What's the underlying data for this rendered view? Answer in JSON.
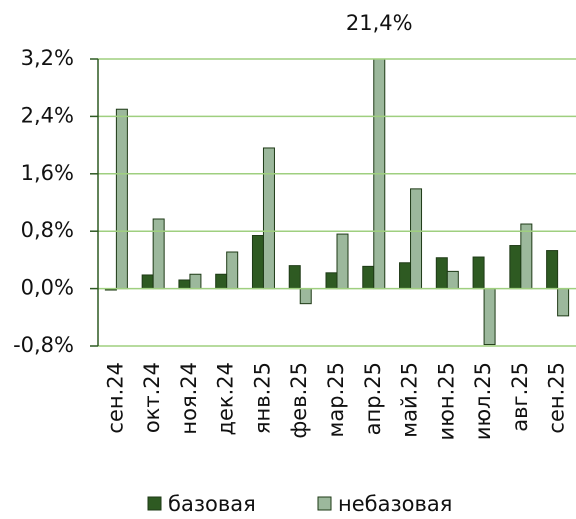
{
  "chart_data": {
    "type": "bar",
    "categories": [
      "сен.24",
      "окт.24",
      "ноя.24",
      "дек.24",
      "янв.25",
      "фев.25",
      "мар.25",
      "апр.25",
      "май.25",
      "июн.25",
      "июл.25",
      "авг.25",
      "сен.25"
    ],
    "series": [
      {
        "name": "базовая",
        "color": "#2e5a22",
        "values": [
          -0.02,
          0.19,
          0.12,
          0.2,
          0.74,
          0.32,
          0.22,
          0.31,
          0.36,
          0.43,
          0.44,
          0.6,
          0.53
        ]
      },
      {
        "name": "небазовая",
        "color": "#9cb89c",
        "values": [
          2.5,
          0.97,
          0.2,
          0.51,
          1.96,
          -0.21,
          0.76,
          21.4,
          1.39,
          0.24,
          -0.78,
          0.9,
          -0.38
        ],
        "value_labels": [
          null,
          null,
          null,
          null,
          null,
          null,
          null,
          "21,4%",
          null,
          null,
          null,
          null,
          null
        ]
      }
    ],
    "ylim": [
      -0.8,
      3.2
    ],
    "yticks": [
      {
        "value": -0.8,
        "label": "-0,8%"
      },
      {
        "value": 0,
        "label": "0,0%"
      },
      {
        "value": 0.8,
        "label": "0,8%"
      },
      {
        "value": 1.6,
        "label": "1,6%"
      },
      {
        "value": 2.4,
        "label": "2,4%"
      },
      {
        "value": 3.2,
        "label": "3,2%"
      }
    ],
    "grid": true,
    "legend": "bottom"
  }
}
